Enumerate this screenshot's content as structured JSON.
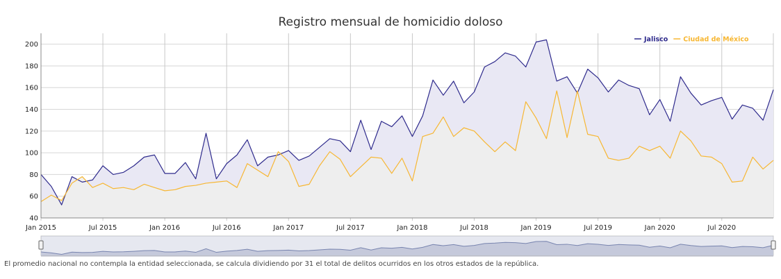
{
  "chart_data": {
    "type": "area",
    "title": "Registro mensual de homicidio doloso",
    "xlabel": "",
    "ylabel": "",
    "ylim": [
      40,
      210
    ],
    "yticks": [
      40,
      60,
      80,
      100,
      120,
      140,
      160,
      180,
      200
    ],
    "x_start": "Jan 2015",
    "x_count": 72,
    "xticks": [
      {
        "index": 0,
        "label": "Jan 2015"
      },
      {
        "index": 6,
        "label": "Jul 2015"
      },
      {
        "index": 12,
        "label": "Jan 2016"
      },
      {
        "index": 18,
        "label": "Jul 2016"
      },
      {
        "index": 24,
        "label": "Jan 2017"
      },
      {
        "index": 30,
        "label": "Jul 2017"
      },
      {
        "index": 36,
        "label": "Jan 2018"
      },
      {
        "index": 42,
        "label": "Jul 2018"
      },
      {
        "index": 48,
        "label": "Jan 2019"
      },
      {
        "index": 54,
        "label": "Jul 2019"
      },
      {
        "index": 60,
        "label": "Jan 2020"
      },
      {
        "index": 66,
        "label": "Jul 2020"
      }
    ],
    "grid": true,
    "legend": "top-right",
    "series": [
      {
        "name": "Jalisco",
        "color": "#2e2a8c",
        "fill": "#e9e8f4",
        "values": [
          80,
          69,
          52,
          78,
          73,
          75,
          88,
          80,
          82,
          88,
          96,
          98,
          81,
          81,
          91,
          76,
          118,
          76,
          90,
          98,
          112,
          88,
          96,
          98,
          102,
          93,
          97,
          105,
          113,
          111,
          101,
          130,
          103,
          129,
          124,
          134,
          115,
          134,
          167,
          153,
          166,
          146,
          156,
          179,
          184,
          192,
          189,
          179,
          202,
          204,
          166,
          170,
          155,
          177,
          169,
          156,
          167,
          162,
          159,
          135,
          149,
          129,
          170,
          155,
          144,
          148,
          151,
          131,
          144,
          141,
          130,
          158
        ]
      },
      {
        "name": "Ciudad de México",
        "color": "#f7b733",
        "fill": "#efeeec",
        "values": [
          55,
          61,
          56,
          72,
          78,
          68,
          72,
          67,
          68,
          66,
          71,
          68,
          65,
          66,
          69,
          70,
          72,
          73,
          74,
          68,
          90,
          84,
          78,
          101,
          92,
          69,
          71,
          88,
          101,
          94,
          78,
          87,
          96,
          95,
          81,
          95,
          74,
          115,
          118,
          133,
          115,
          123,
          120,
          110,
          101,
          110,
          102,
          147,
          132,
          113,
          157,
          114,
          157,
          117,
          115,
          95,
          93,
          95,
          106,
          102,
          106,
          95,
          120,
          111,
          97,
          96,
          90,
          73,
          74,
          96,
          85,
          93
        ]
      }
    ],
    "navigator": true
  },
  "footnote": "El promedio nacional no contempla la entidad seleccionada, se calcula dividiendo por 31 el total de delitos ocurridos en los otros estados de la república."
}
